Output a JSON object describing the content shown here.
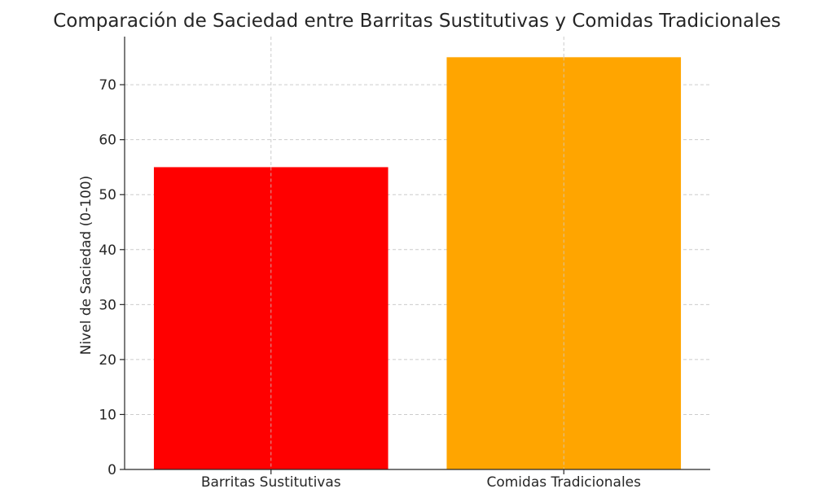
{
  "chart_data": {
    "type": "bar",
    "title": "Comparación de Saciedad entre Barritas Sustitutivas y Comidas Tradicionales",
    "xlabel": "",
    "ylabel": "Nivel de Saciedad (0-100)",
    "categories": [
      "Barritas Sustitutivas",
      "Comidas Tradicionales"
    ],
    "values": [
      55,
      75
    ],
    "colors": [
      "#ff0000",
      "#ffa500"
    ],
    "ylim": [
      0,
      78.75
    ],
    "yticks": [
      0,
      10,
      20,
      30,
      40,
      50,
      60,
      70
    ],
    "grid": true,
    "legend": "none"
  }
}
